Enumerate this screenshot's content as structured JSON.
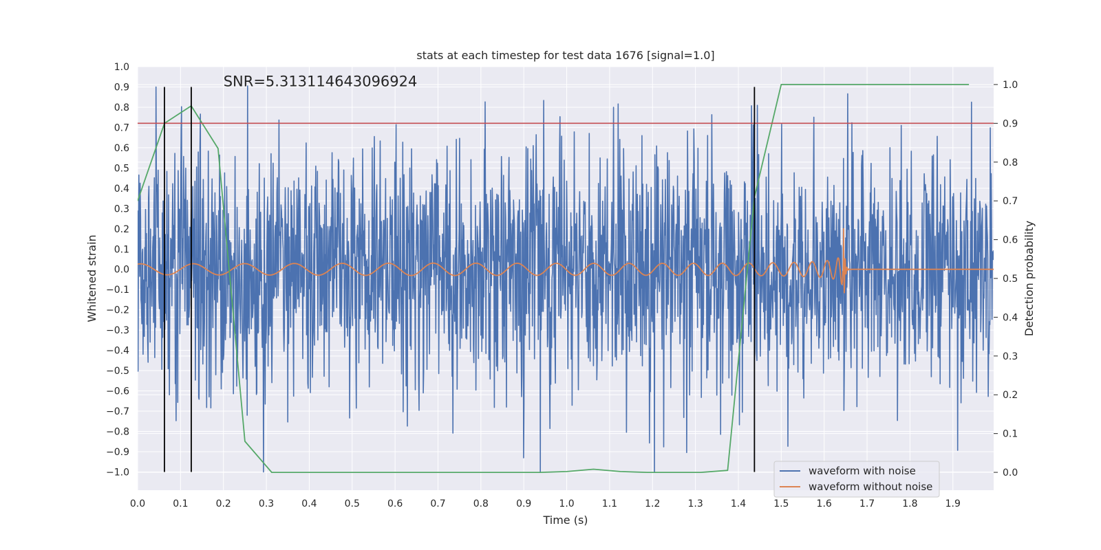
{
  "chart_data": {
    "type": "line",
    "title": "stats at each timestep for test data 1676 [signal=1.0]",
    "xlabel": "Time (s)",
    "ylabel": "Whitened strain",
    "y2label": "Detection probability",
    "xlim": [
      0.0,
      1.995
    ],
    "ylim": [
      -1.09,
      1.0
    ],
    "y2lim": [
      -0.046,
      1.046
    ],
    "xticks": [
      "0.0",
      "0.1",
      "0.2",
      "0.3",
      "0.4",
      "0.5",
      "0.6",
      "0.7",
      "0.8",
      "0.9",
      "1.0",
      "1.1",
      "1.2",
      "1.3",
      "1.4",
      "1.5",
      "1.6",
      "1.7",
      "1.8",
      "1.9"
    ],
    "yticks": [
      "1.0",
      "0.9",
      "0.8",
      "0.7",
      "0.6",
      "0.5",
      "0.4",
      "0.3",
      "0.2",
      "0.1",
      "0.0",
      "−0.1",
      "−0.2",
      "−0.3",
      "−0.4",
      "−0.5",
      "−0.6",
      "−0.7",
      "−0.8",
      "−0.9",
      "−1.0"
    ],
    "y2ticks": [
      "1.0",
      "0.9",
      "0.8",
      "0.7",
      "0.6",
      "0.5",
      "0.4",
      "0.3",
      "0.2",
      "0.1",
      "0.0"
    ],
    "annotation": "SNR=5.313114643096924",
    "annotation_pos": {
      "x": 0.2,
      "y": 0.9
    },
    "threshold": {
      "axis": "y2",
      "value": 0.9,
      "color": "#c44e52"
    },
    "vlines": {
      "x": [
        0.0625,
        0.125,
        1.4375
      ],
      "y_range": [
        -1.0,
        0.9
      ],
      "color": "#000000"
    },
    "legend": {
      "loc": "lower right",
      "entries": [
        "waveform with noise",
        "waveform without noise"
      ]
    },
    "series": [
      {
        "name": "waveform with noise",
        "color": "#4c72b0",
        "kind": "noise",
        "std": 0.3,
        "clip": 1.0,
        "samples": 2048,
        "t_end": 1.995
      },
      {
        "name": "waveform without noise",
        "color": "#dd8452",
        "kind": "chirp",
        "merger_time": 1.645,
        "t_end": 1.995
      },
      {
        "name": "Detection probability",
        "axis": "y2",
        "color": "#55a868",
        "x": [
          0.0,
          0.0625,
          0.125,
          0.1875,
          0.25,
          0.3125,
          0.375,
          0.4375,
          0.5,
          0.5625,
          0.625,
          0.6875,
          0.75,
          0.8125,
          0.875,
          0.9375,
          1.0,
          1.0625,
          1.125,
          1.1875,
          1.25,
          1.3125,
          1.375,
          1.4375,
          1.5,
          1.5625,
          1.625,
          1.6875,
          1.75,
          1.8125,
          1.875,
          1.9375
        ],
        "values": [
          0.7,
          0.9,
          0.945,
          0.835,
          0.08,
          0.0,
          0.0,
          0.0,
          0.0,
          0.0,
          0.0,
          0.0,
          0.0,
          0.0,
          0.0,
          0.0,
          0.002,
          0.008,
          0.002,
          0.0,
          0.0,
          0.0,
          0.005,
          0.71,
          1.0,
          1.0,
          1.0,
          1.0,
          1.0,
          1.0,
          1.0,
          1.0
        ]
      }
    ]
  }
}
